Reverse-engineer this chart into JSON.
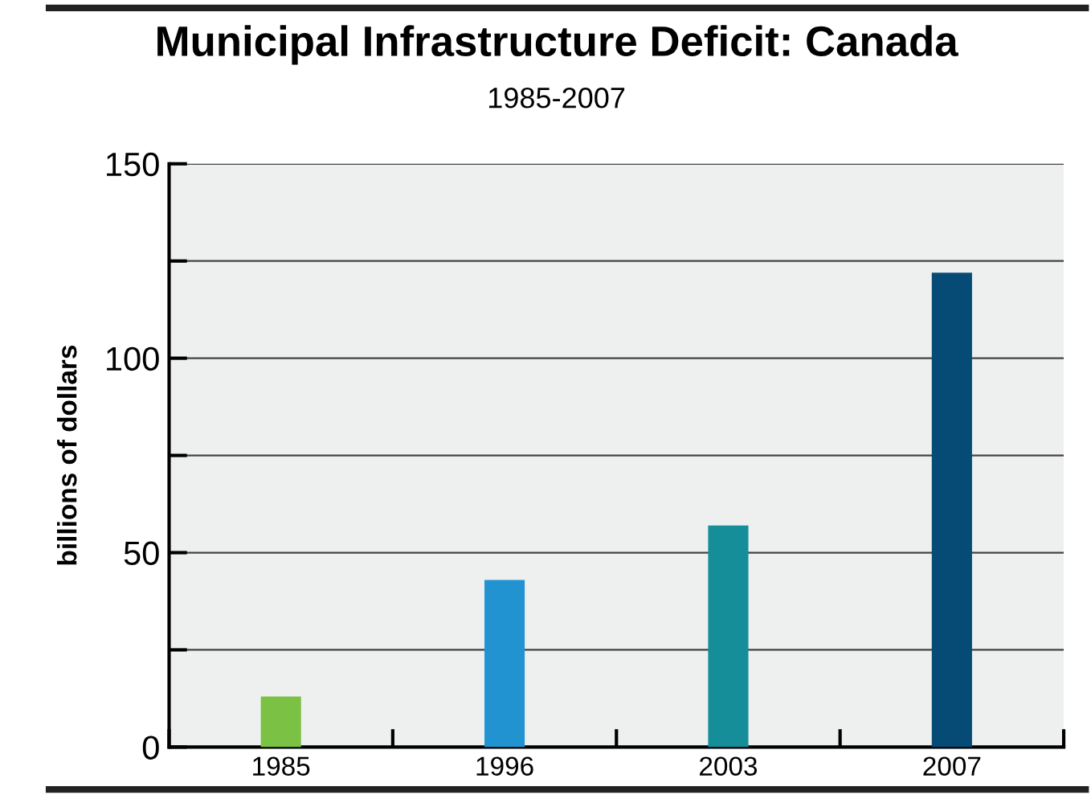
{
  "chart_data": {
    "type": "bar",
    "title": "Municipal Infrastructure Deficit: Canada",
    "subtitle": "1985-2007",
    "ylabel": "billions of dollars",
    "categories": [
      "1985",
      "1996",
      "2003",
      "2007"
    ],
    "values": [
      13,
      43,
      57,
      122
    ],
    "colors": [
      "#7bc143",
      "#2293d1",
      "#168e9a",
      "#064a76"
    ],
    "ylim": [
      0,
      150
    ],
    "yticks": [
      0,
      {
        "value": 25,
        "label": null
      },
      50,
      {
        "value": 75,
        "label": null
      },
      100,
      {
        "value": 125,
        "label": null
      },
      150
    ],
    "grid": "y"
  }
}
